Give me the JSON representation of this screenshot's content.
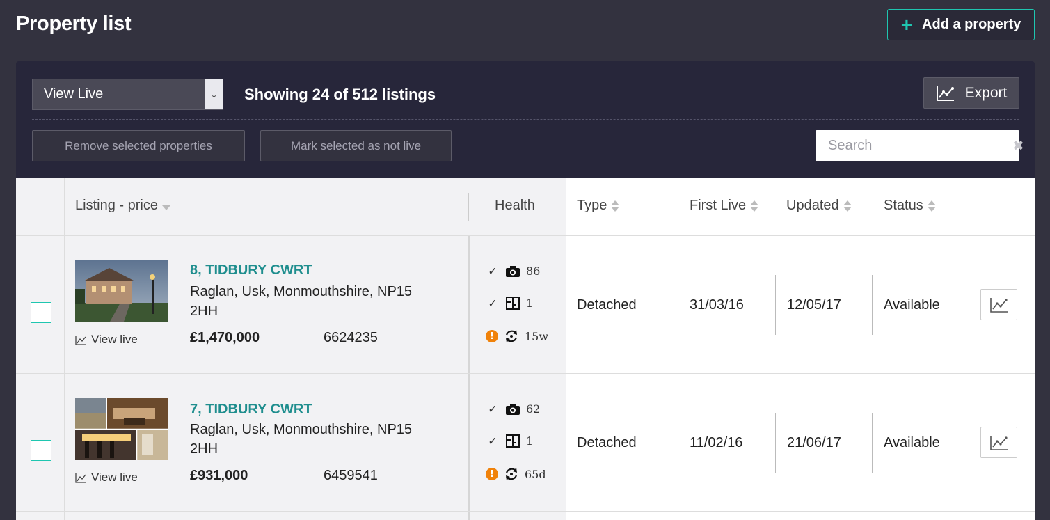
{
  "header": {
    "title": "Property list",
    "add_button_label": "Add a property"
  },
  "toolbar": {
    "view_select_value": "View Live",
    "showing_text": "Showing 24 of 512 listings",
    "export_label": "Export",
    "remove_label": "Remove selected properties",
    "mark_label": "Mark selected as not live",
    "search_placeholder": "Search"
  },
  "columns": {
    "listing": "Listing - price",
    "health": "Health",
    "type": "Type",
    "first_live": "First Live",
    "updated": "Updated",
    "status": "Status"
  },
  "rows": [
    {
      "title": "8, TIDBURY CWRT",
      "address": "Raglan, Usk, Monmouthshire, NP15 2HH",
      "view_live": "View live",
      "price": "£1,470,000",
      "ref": "6624235",
      "photos": "86",
      "floorplans": "1",
      "age": "15w",
      "type": "Detached",
      "first_live": "31/03/16",
      "updated": "12/05/17",
      "status": "Available"
    },
    {
      "title": "7, TIDBURY CWRT",
      "address": "Raglan, Usk, Monmouthshire, NP15 2HH",
      "view_live": "View live",
      "price": "£931,000",
      "ref": "6459541",
      "photos": "62",
      "floorplans": "1",
      "age": "65d",
      "type": "Detached",
      "first_live": "11/02/16",
      "updated": "21/06/17",
      "status": "Available"
    }
  ],
  "colors": {
    "accent": "#1fc6b0",
    "link": "#1f8e8e",
    "warning": "#f0820a",
    "background": "#33323f"
  }
}
